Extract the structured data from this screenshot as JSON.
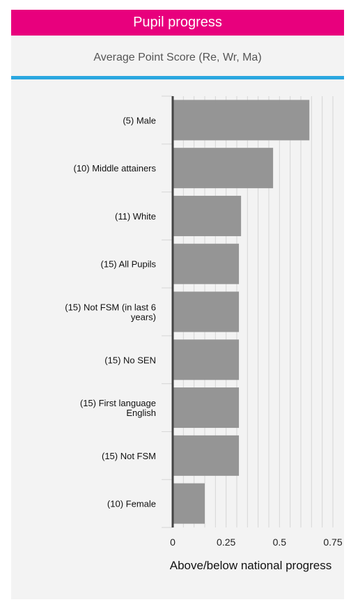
{
  "header": {
    "title": "Pupil progress"
  },
  "chart_data": {
    "type": "bar",
    "orientation": "horizontal",
    "title": "Average Point Score (Re, Wr, Ma)",
    "xlabel": "Above/below national progress",
    "ylabel": "",
    "categories": [
      "(5) Male",
      "(10) Middle attainers",
      "(11) White",
      "(15) All Pupils",
      "(15) Not FSM (in last 6 years)",
      "(15) No SEN",
      "(15) First language English",
      "(15) Not FSM",
      "(10) Female"
    ],
    "values": [
      0.64,
      0.47,
      0.32,
      0.31,
      0.31,
      0.31,
      0.31,
      0.31,
      0.15
    ],
    "xlim": [
      0,
      0.75
    ],
    "xticks": [
      "0",
      "0.25",
      "0.5",
      "0.75"
    ],
    "grid": true,
    "bar_color": "#959595",
    "grid_color": "#d6d6d6"
  },
  "colors": {
    "header": "#e8007d",
    "accent_rule": "#2aa7e0"
  }
}
